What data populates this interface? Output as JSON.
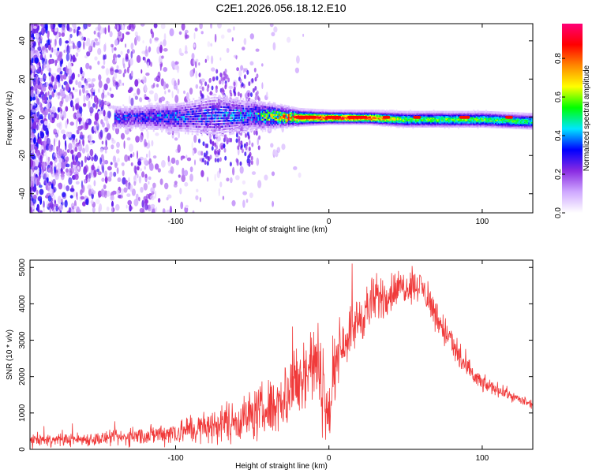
{
  "title": "C2E1.2026.056.18.12.E10",
  "chart_data": [
    {
      "type": "heatmap",
      "xlabel": "Height of straight line (km)",
      "ylabel": "Frequency (Hz)",
      "xlim": [
        -195,
        133
      ],
      "ylim": [
        -50,
        49
      ],
      "xticks": [
        -100,
        0,
        100
      ],
      "yticks": [
        -40,
        -20,
        0,
        20,
        40
      ],
      "colorbar": {
        "label": "Normalized spectral amplitude",
        "range": [
          0,
          0.98
        ],
        "ticks": [
          "0.0",
          "0.2",
          "0.4",
          "0.6",
          "0.8"
        ],
        "colors": [
          "#ffffff",
          "#cfa8ff",
          "#8a2be2",
          "#0000ff",
          "#00e5ff",
          "#00ff00",
          "#ffff00",
          "#ff8800",
          "#ff0000",
          "#ff0077"
        ]
      },
      "band": [
        {
          "x": -130,
          "freq": 0,
          "width": 8,
          "amplitude": 0.3
        },
        {
          "x": -100,
          "freq": 0,
          "width": 10,
          "amplitude": 0.35
        },
        {
          "x": -75,
          "freq": 1,
          "width": 14,
          "amplitude": 0.35
        },
        {
          "x": -50,
          "freq": 1,
          "width": 10,
          "amplitude": 0.4
        },
        {
          "x": -20,
          "freq": 0,
          "width": 5,
          "amplitude": 0.9
        },
        {
          "x": 0,
          "freq": 0,
          "width": 4,
          "amplitude": 0.95
        },
        {
          "x": 25,
          "freq": 0,
          "width": 4,
          "amplitude": 0.9
        },
        {
          "x": 50,
          "freq": -1,
          "width": 5,
          "amplitude": 0.6
        },
        {
          "x": 100,
          "freq": -1,
          "width": 5,
          "amplitude": 0.6
        },
        {
          "x": 130,
          "freq": -2,
          "width": 5,
          "amplitude": 0.55
        }
      ]
    },
    {
      "type": "line",
      "xlabel": "Height of straight line (km)",
      "ylabel": "SNR (10 * v/v)",
      "xlim": [
        -195,
        133
      ],
      "ylim": [
        0,
        5200
      ],
      "xticks": [
        -100,
        0,
        100
      ],
      "yticks": [
        0,
        1000,
        2000,
        3000,
        4000,
        5000
      ],
      "color": "#f03a3a",
      "series": [
        {
          "name": "SNR",
          "x": [
            -195,
            -180,
            -160,
            -140,
            -120,
            -100,
            -80,
            -60,
            -40,
            -30,
            -20,
            -10,
            -5,
            0,
            5,
            10,
            20,
            30,
            40,
            50,
            60,
            70,
            80,
            90,
            100,
            110,
            120,
            133
          ],
          "y": [
            250,
            260,
            280,
            300,
            380,
            480,
            600,
            800,
            1100,
            1400,
            1900,
            2400,
            2000,
            800,
            2600,
            3000,
            3600,
            4100,
            4300,
            4500,
            4500,
            3700,
            2900,
            2200,
            1800,
            1650,
            1450,
            1200
          ],
          "noise": [
            150,
            150,
            160,
            180,
            220,
            300,
            400,
            500,
            700,
            800,
            1000,
            1000,
            1200,
            600,
            700,
            600,
            600,
            600,
            500,
            400,
            350,
            400,
            400,
            300,
            200,
            160,
            120,
            100
          ]
        }
      ]
    }
  ]
}
